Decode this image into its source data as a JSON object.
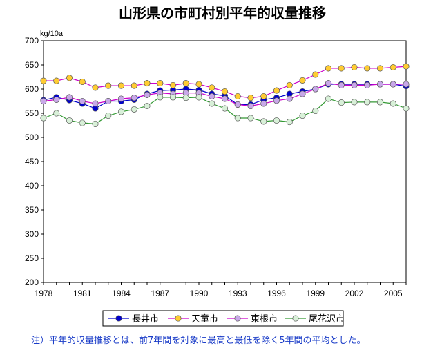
{
  "chart_data": {
    "type": "line",
    "title": "山形県の市町村別平年的収量推移",
    "y_unit": "kg/10a",
    "ylim": [
      200,
      700
    ],
    "y_ticks": [
      "200",
      "250",
      "300",
      "350",
      "400",
      "450",
      "500",
      "550",
      "600",
      "650",
      "700"
    ],
    "x": [
      1978,
      1979,
      1980,
      1981,
      1982,
      1983,
      1984,
      1985,
      1986,
      1987,
      1988,
      1989,
      1990,
      1991,
      1992,
      1993,
      1994,
      1995,
      1996,
      1997,
      1998,
      1999,
      2000,
      2001,
      2002,
      2003,
      2004,
      2005,
      2006
    ],
    "x_ticks": [
      "1978",
      "1981",
      "1984",
      "1987",
      "1990",
      "1993",
      "1996",
      "1999",
      "2002",
      "2005"
    ],
    "grid": false,
    "legend_position": "bottom",
    "series": [
      {
        "name": "長井市",
        "color": "#0000cc",
        "marker_fill": "#0000cc",
        "values": [
          577,
          583,
          577,
          570,
          560,
          575,
          575,
          578,
          590,
          597,
          598,
          600,
          598,
          590,
          586,
          568,
          568,
          578,
          582,
          590,
          595,
          600,
          610,
          610,
          610,
          610,
          610,
          610,
          606
        ]
      },
      {
        "name": "天童市",
        "color": "#cc00cc",
        "marker_fill": "#ffcc33",
        "values": [
          617,
          617,
          623,
          615,
          603,
          607,
          607,
          607,
          612,
          612,
          608,
          612,
          610,
          603,
          595,
          585,
          582,
          585,
          597,
          608,
          618,
          630,
          643,
          643,
          645,
          643,
          643,
          645,
          647
        ]
      },
      {
        "name": "東根市",
        "color": "#cc00cc",
        "marker_fill": "#c8a8e8",
        "values": [
          575,
          578,
          583,
          575,
          570,
          575,
          580,
          582,
          588,
          592,
          590,
          592,
          592,
          585,
          580,
          568,
          565,
          570,
          576,
          580,
          590,
          600,
          612,
          608,
          608,
          608,
          610,
          610,
          610
        ]
      },
      {
        "name": "尾花沢市",
        "color": "#339933",
        "marker_fill": "#d8f0d8",
        "values": [
          540,
          550,
          535,
          530,
          528,
          545,
          553,
          558,
          565,
          583,
          583,
          582,
          583,
          570,
          560,
          540,
          540,
          533,
          535,
          532,
          545,
          555,
          580,
          572,
          573,
          573,
          573,
          570,
          560
        ]
      }
    ],
    "note": "注）平年的収量推移とは、前7年間を対象に最高と最低を除く5年間の平均とした。"
  }
}
